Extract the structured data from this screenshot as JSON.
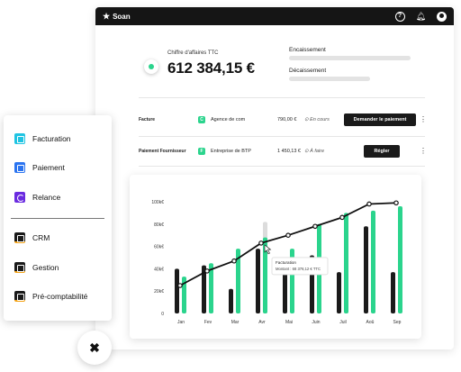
{
  "topbar": {
    "brand": "Soan",
    "icons": [
      "star-icon",
      "help-icon",
      "bell-icon",
      "avatar-icon"
    ]
  },
  "summary": {
    "ca_label": "Chiffre d'affaires TTC",
    "ca_value": "612 384,15 €",
    "encaissement_label": "Encaissement",
    "decaissement_label": "Décaissement"
  },
  "rows": [
    {
      "label": "Facture",
      "badge": "C",
      "who": "Agence de com",
      "amount": "790,00 €",
      "status": "En cours",
      "button": "Demander le paiement"
    },
    {
      "label": "Paiement Fournisseur",
      "badge": "F",
      "who": "Entreprise de BTP",
      "amount": "1 450,13 €",
      "status": "À faire",
      "button": "Régler"
    }
  ],
  "sidebar": {
    "items": [
      {
        "label": "Facturation",
        "icon": "document-icon"
      },
      {
        "label": "Paiement",
        "icon": "card-icon"
      },
      {
        "label": "Relance",
        "icon": "refresh-icon"
      },
      {
        "label": "CRM",
        "icon": "crm-icon"
      },
      {
        "label": "Gestion",
        "icon": "folder-icon"
      },
      {
        "label": "Pré-comptabilité",
        "icon": "calculator-icon"
      }
    ],
    "close_icon": "close-icon"
  },
  "colors": {
    "accent": "#2bd48d",
    "dark": "#1a1a1a",
    "line": "#111111",
    "ghost": "#dcdcdc"
  },
  "chart_data": {
    "type": "bar",
    "categories": [
      "Jan",
      "Fev",
      "Mar",
      "Avr",
      "Mai",
      "Juin",
      "Juil",
      "Aoû",
      "Sep"
    ],
    "y_ticks": [
      "0",
      "20k€",
      "40k€",
      "60k€",
      "80k€",
      "100k€"
    ],
    "ylim": [
      0,
      100000
    ],
    "series": [
      {
        "kind": "bar",
        "color": "#1a1a1a",
        "values": [
          40000,
          43000,
          22000,
          58000,
          38000,
          52000,
          37000,
          78000,
          37000
        ]
      },
      {
        "kind": "bar",
        "color": "#2bd48d",
        "values": [
          33000,
          45000,
          58000,
          68000,
          58000,
          80000,
          90000,
          92000,
          96000
        ]
      },
      {
        "kind": "bar",
        "color": "#dcdcdc",
        "values": [
          0,
          0,
          0,
          82000,
          0,
          0,
          0,
          0,
          0
        ]
      },
      {
        "kind": "line",
        "color": "#111111",
        "values": [
          25000,
          38000,
          47000,
          63000,
          70000,
          78000,
          86000,
          98000,
          99000
        ]
      }
    ],
    "tooltip": {
      "title": "Facturation",
      "text": "Montant : 68 378,12 € TTC",
      "category": "Avr"
    }
  }
}
